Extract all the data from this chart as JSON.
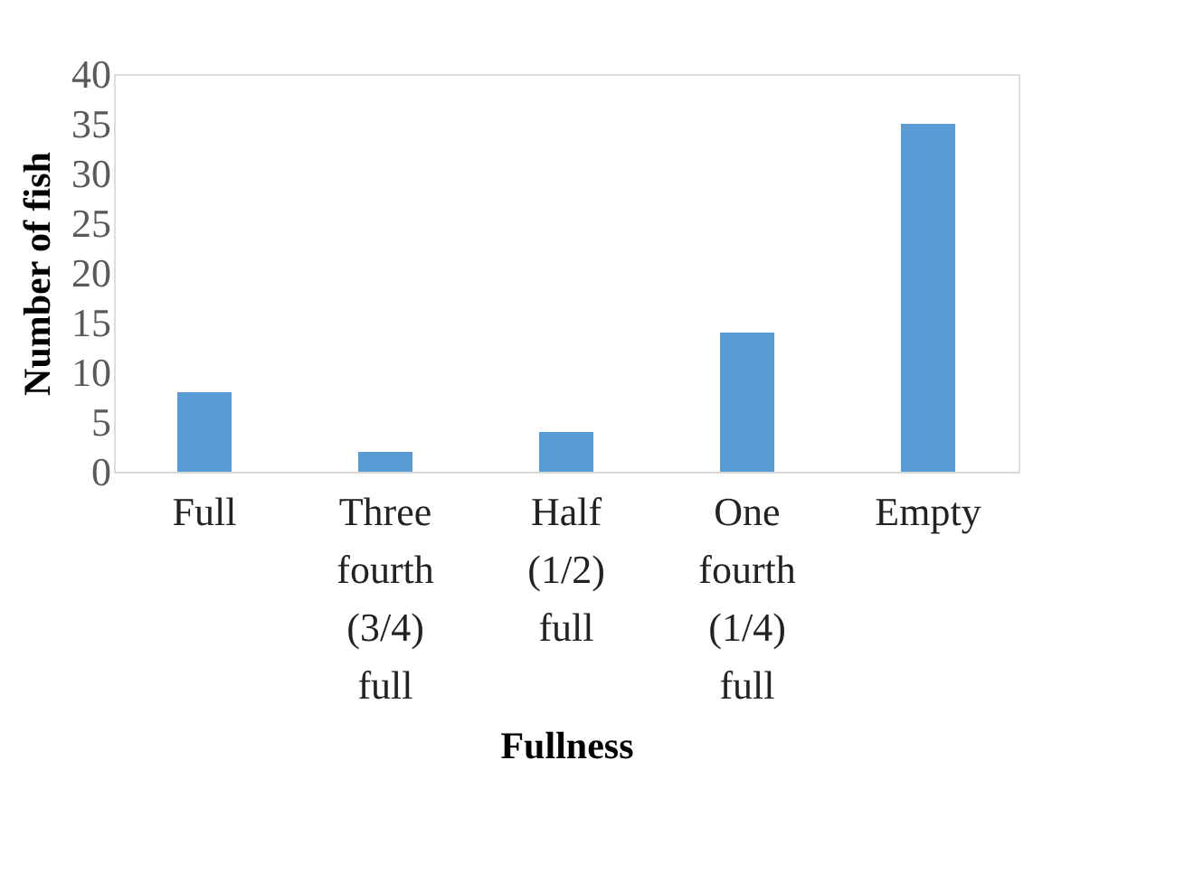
{
  "chart_data": {
    "type": "bar",
    "xlabel": "Fullness",
    "ylabel": "Number of fish",
    "categories": [
      "Full",
      "Three fourth (3/4) full",
      "Half (1/2) full",
      "One fourth (1/4) full",
      "Empty"
    ],
    "values": [
      8,
      2,
      4,
      14,
      35
    ],
    "color": "#5b9bd5",
    "ylim": [
      0,
      40
    ],
    "yticks": [
      0,
      5,
      10,
      15,
      20,
      25,
      30,
      35,
      40
    ],
    "grid": false
  }
}
